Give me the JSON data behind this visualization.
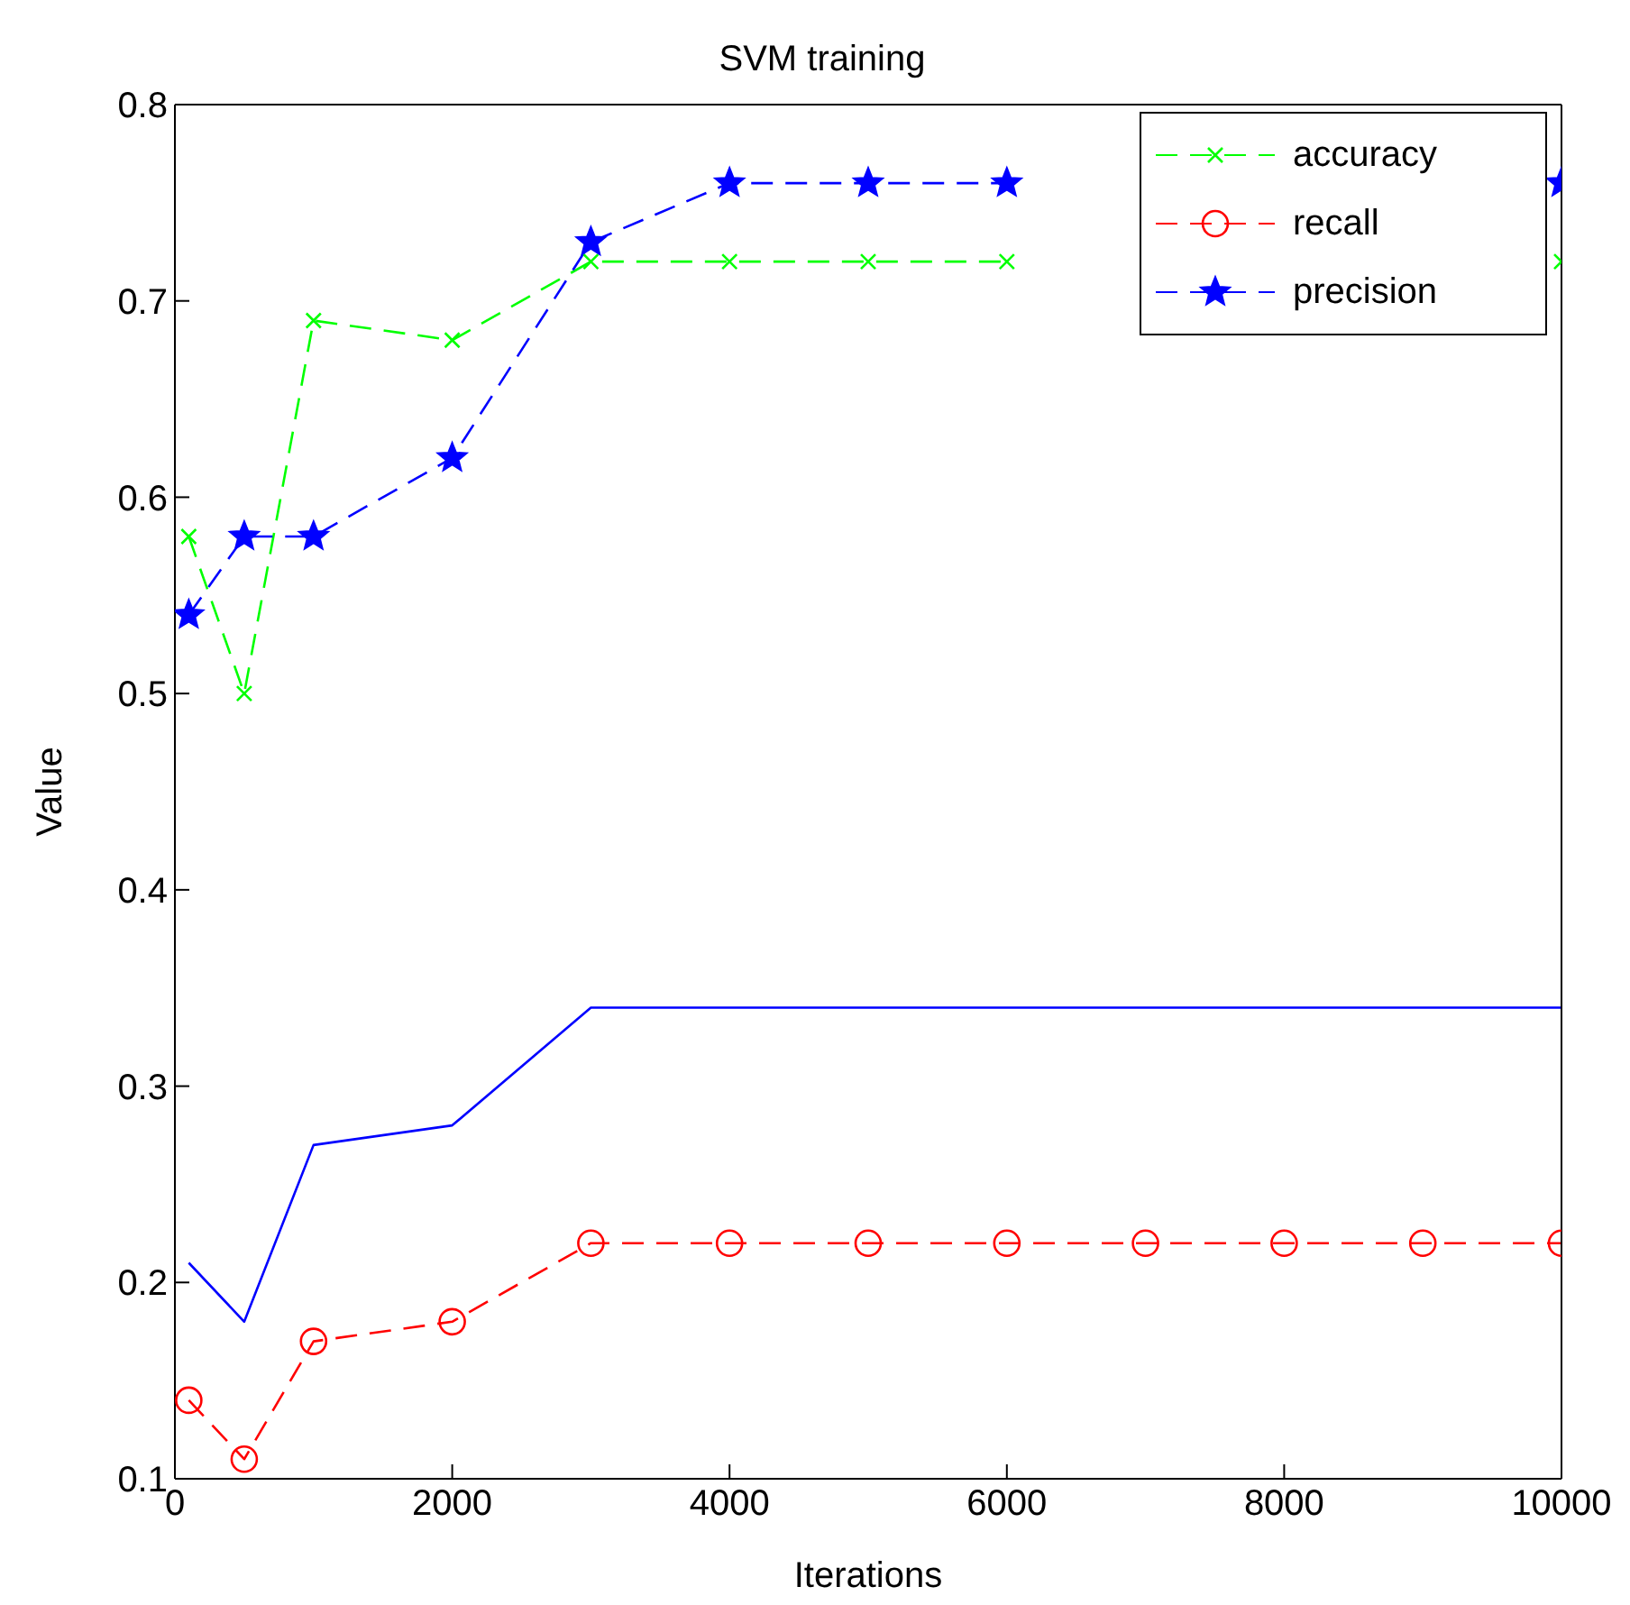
{
  "chart_data": {
    "type": "line",
    "title": "SVM training",
    "xlabel": "Iterations",
    "ylabel": "Value",
    "x": [
      100,
      500,
      1000,
      2000,
      3000,
      4000,
      5000,
      6000,
      7000,
      8000,
      9000,
      10000
    ],
    "series": [
      {
        "name": "accuracy",
        "color": "#00ff00",
        "marker": "cross",
        "line_style": "dashed",
        "values": [
          0.58,
          0.5,
          0.69,
          0.68,
          0.72,
          0.72,
          0.72,
          0.72,
          null,
          null,
          null,
          0.72
        ]
      },
      {
        "name": "recall",
        "color": "#ff0000",
        "marker": "circle",
        "line_style": "dashed",
        "values": [
          0.14,
          0.11,
          0.17,
          0.18,
          0.22,
          0.22,
          0.22,
          0.22,
          0.22,
          0.22,
          0.22,
          0.22
        ]
      },
      {
        "name": "precision",
        "color": "#0000ff",
        "marker": "star",
        "line_style": "dashed",
        "values": [
          0.54,
          0.58,
          0.58,
          0.62,
          0.73,
          0.76,
          0.76,
          0.76,
          null,
          null,
          null,
          0.76
        ]
      },
      {
        "color": "#0000ff",
        "marker": "none",
        "line_style": "solid",
        "values": [
          0.21,
          0.18,
          0.27,
          0.28,
          0.34,
          0.34,
          0.34,
          0.34,
          0.34,
          0.34,
          0.34,
          0.34
        ]
      }
    ],
    "xlim": [
      0,
      10000
    ],
    "xticks": [
      0,
      2000,
      4000,
      6000,
      8000,
      10000
    ],
    "ylim": [
      0.1,
      0.8
    ],
    "yticks": [
      0.1,
      0.2,
      0.3,
      0.4,
      0.5,
      0.6,
      0.7,
      0.8
    ],
    "legend": "top right"
  }
}
